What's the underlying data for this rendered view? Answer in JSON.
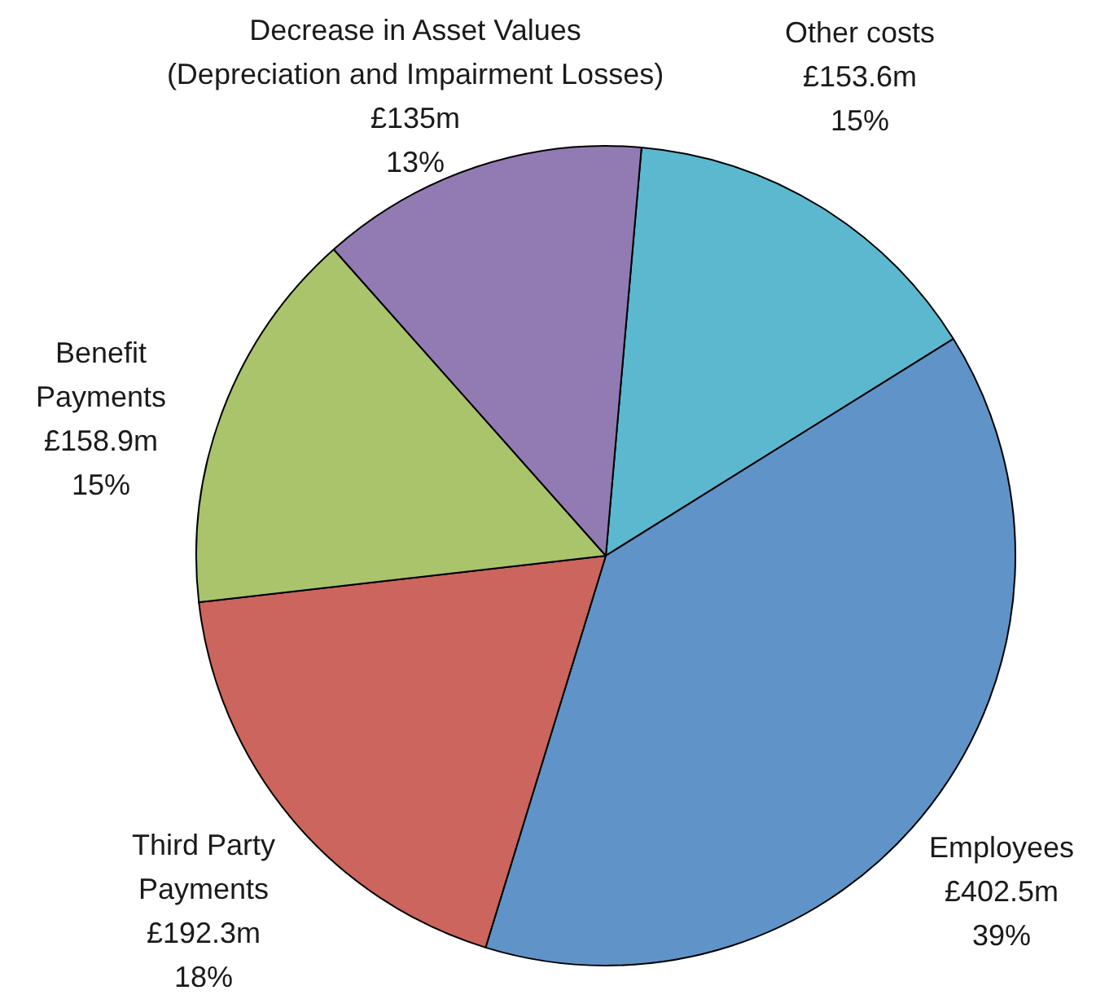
{
  "chart_data": {
    "type": "pie",
    "categories": [
      "Other costs",
      "Employees",
      "Third Party\nPayments",
      "Benefit\nPayments",
      "Decrease in Asset Values\n(Depreciation and Impairment Losses)"
    ],
    "values": [
      153.6,
      402.5,
      192.3,
      158.9,
      135
    ],
    "value_labels": [
      "£153.6m",
      "£402.5m",
      "£192.3m",
      "£158.9m",
      "£135m"
    ],
    "annotations": [
      "15%",
      "39%",
      "18%",
      "15%",
      "13%"
    ],
    "colors": [
      "#5bb8cf",
      "#6094c9",
      "#cb655d",
      "#a9c46b",
      "#927bb2"
    ],
    "legend": false
  }
}
